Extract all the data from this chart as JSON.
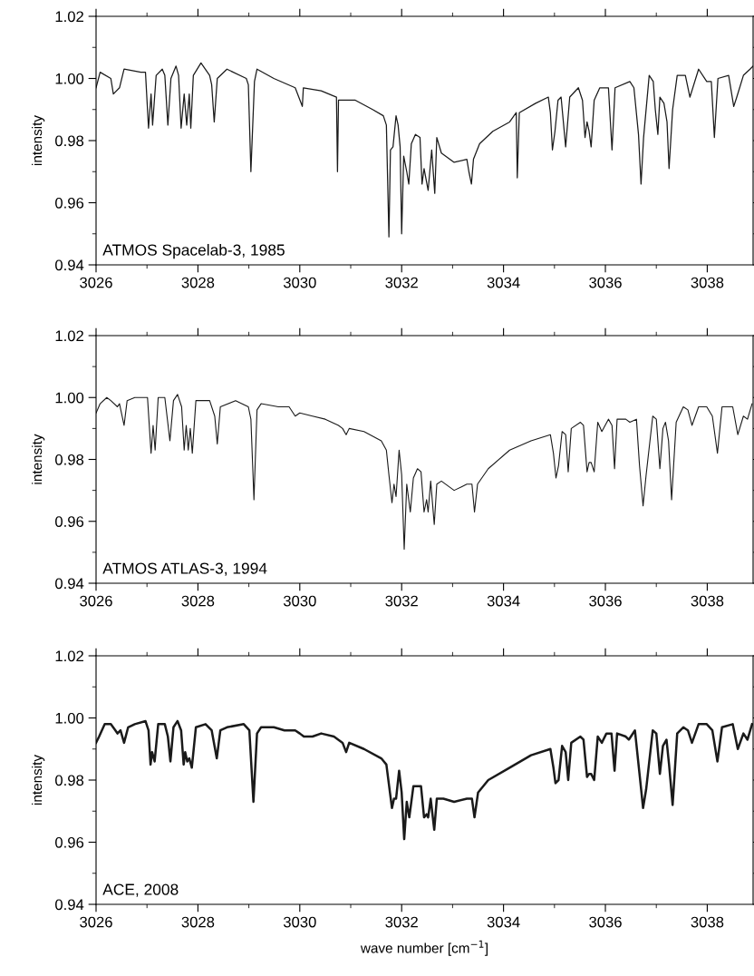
{
  "chart_data": [
    {
      "type": "line",
      "ylabel": "intensity",
      "annotations": [
        "ATMOS Spacelab-3, 1985"
      ],
      "xlim": [
        3026,
        3038.9
      ],
      "xticks": [
        3026,
        3028,
        3030,
        3032,
        3034,
        3036,
        3038
      ],
      "ylim": [
        0.94,
        1.02
      ],
      "yticks": [
        {
          "value": 0.94,
          "label": "0.94"
        },
        {
          "value": 0.96,
          "label": "0.96"
        },
        {
          "value": 0.98,
          "label": "0.98"
        },
        {
          "value": 1.0,
          "label": "1.00"
        },
        {
          "value": 1.02,
          "label": "1.02"
        }
      ],
      "grid": false,
      "series": [
        {
          "color": "#1a1a1a",
          "x": [
            3026.0,
            3026.08,
            3026.29,
            3026.34,
            3026.46,
            3026.55,
            3026.88,
            3026.97,
            3027.03,
            3027.08,
            3027.11,
            3027.18,
            3027.3,
            3027.35,
            3027.41,
            3027.47,
            3027.57,
            3027.62,
            3027.67,
            3027.73,
            3027.78,
            3027.83,
            3027.86,
            3027.91,
            3028.06,
            3028.23,
            3028.27,
            3028.32,
            3028.38,
            3028.57,
            3028.95,
            3028.99,
            3029.04,
            3029.11,
            3029.16,
            3029.49,
            3029.91,
            3030.05,
            3030.07,
            3030.42,
            3030.72,
            3030.74,
            3030.76,
            3031.09,
            3031.43,
            3031.64,
            3031.7,
            3031.75,
            3031.78,
            3031.83,
            3031.89,
            3031.93,
            3031.97,
            3032.0,
            3032.04,
            3032.1,
            3032.14,
            3032.19,
            3032.27,
            3032.36,
            3032.4,
            3032.44,
            3032.52,
            3032.59,
            3032.65,
            3032.69,
            3032.78,
            3033.03,
            3033.28,
            3033.32,
            3033.37,
            3033.41,
            3033.53,
            3033.79,
            3034.12,
            3034.25,
            3034.27,
            3034.31,
            3034.63,
            3034.88,
            3034.92,
            3034.96,
            3035.01,
            3035.07,
            3035.13,
            3035.22,
            3035.3,
            3035.47,
            3035.55,
            3035.6,
            3035.64,
            3035.68,
            3035.72,
            3035.78,
            3035.89,
            3036.06,
            3036.13,
            3036.19,
            3036.48,
            3036.56,
            3036.65,
            3036.7,
            3036.75,
            3036.86,
            3036.94,
            3036.98,
            3037.03,
            3037.07,
            3037.15,
            3037.21,
            3037.25,
            3037.32,
            3037.41,
            3037.57,
            3037.66,
            3037.83,
            3037.99,
            3038.08,
            3038.14,
            3038.21,
            3038.42,
            3038.52,
            3038.58,
            3038.71,
            3038.84,
            3038.9
          ],
          "values": [
            0.997,
            1.002,
            1.0,
            0.995,
            0.997,
            1.003,
            1.002,
            1.002,
            0.984,
            0.995,
            0.985,
            1.001,
            1.003,
            1.001,
            0.985,
            1.0,
            1.004,
            1.001,
            0.984,
            0.995,
            0.985,
            0.995,
            0.984,
            1.001,
            1.005,
            1.001,
            0.998,
            0.986,
            1.0,
            1.003,
            1.0,
            0.998,
            0.97,
            0.999,
            1.003,
            1.0,
            0.997,
            0.991,
            0.997,
            0.996,
            0.994,
            0.97,
            0.993,
            0.993,
            0.99,
            0.988,
            0.985,
            0.949,
            0.977,
            0.978,
            0.988,
            0.985,
            0.978,
            0.95,
            0.975,
            0.97,
            0.966,
            0.979,
            0.982,
            0.981,
            0.966,
            0.971,
            0.964,
            0.977,
            0.963,
            0.981,
            0.976,
            0.973,
            0.974,
            0.97,
            0.966,
            0.974,
            0.979,
            0.983,
            0.986,
            0.989,
            0.968,
            0.989,
            0.992,
            0.994,
            0.989,
            0.977,
            0.983,
            0.993,
            0.994,
            0.978,
            0.994,
            0.997,
            0.993,
            0.981,
            0.986,
            0.983,
            0.978,
            0.993,
            0.997,
            0.997,
            0.977,
            0.997,
            0.999,
            0.997,
            0.982,
            0.966,
            0.981,
            1.001,
            0.999,
            0.99,
            0.982,
            0.994,
            0.992,
            0.986,
            0.971,
            0.99,
            1.001,
            1.001,
            0.994,
            1.003,
            0.999,
            0.999,
            0.981,
            1.0,
            1.001,
            0.991,
            0.994,
            1.001,
            1.003,
            1.004
          ]
        }
      ]
    },
    {
      "type": "line",
      "ylabel": "intensity",
      "annotations": [
        "ATMOS ATLAS-3, 1994"
      ],
      "xlim": [
        3026,
        3038.9
      ],
      "xticks": [
        3026,
        3028,
        3030,
        3032,
        3034,
        3036,
        3038
      ],
      "ylim": [
        0.94,
        1.02
      ],
      "yticks": [
        {
          "value": 0.94,
          "label": "0.94"
        },
        {
          "value": 0.96,
          "label": "0.96"
        },
        {
          "value": 0.98,
          "label": "0.98"
        },
        {
          "value": 1.0,
          "label": "1.00"
        },
        {
          "value": 1.02,
          "label": "1.02"
        }
      ],
      "grid": false,
      "series": [
        {
          "color": "#1a1a1a",
          "x": [
            3026.0,
            3026.08,
            3026.21,
            3026.29,
            3026.42,
            3026.46,
            3026.55,
            3026.61,
            3026.76,
            3027.01,
            3027.08,
            3027.12,
            3027.16,
            3027.22,
            3027.35,
            3027.45,
            3027.52,
            3027.6,
            3027.68,
            3027.73,
            3027.77,
            3027.81,
            3027.85,
            3027.89,
            3027.96,
            3028.23,
            3028.33,
            3028.38,
            3028.44,
            3028.74,
            3028.99,
            3029.04,
            3029.1,
            3029.16,
            3029.24,
            3029.58,
            3029.79,
            3029.91,
            3030.0,
            3030.25,
            3030.5,
            3030.76,
            3030.84,
            3030.91,
            3030.97,
            3031.26,
            3031.6,
            3031.7,
            3031.75,
            3031.81,
            3031.85,
            3031.89,
            3031.95,
            3032.0,
            3032.05,
            3032.1,
            3032.17,
            3032.23,
            3032.31,
            3032.38,
            3032.44,
            3032.49,
            3032.52,
            3032.57,
            3032.64,
            3032.69,
            3032.78,
            3033.03,
            3033.28,
            3033.38,
            3033.43,
            3033.49,
            3033.7,
            3034.12,
            3034.54,
            3034.92,
            3034.98,
            3035.03,
            3035.08,
            3035.15,
            3035.22,
            3035.27,
            3035.33,
            3035.51,
            3035.57,
            3035.64,
            3035.68,
            3035.72,
            3035.78,
            3035.85,
            3035.93,
            3036.06,
            3036.13,
            3036.18,
            3036.23,
            3036.4,
            3036.48,
            3036.61,
            3036.67,
            3036.74,
            3036.8,
            3036.93,
            3037.0,
            3037.07,
            3037.13,
            3037.18,
            3037.24,
            3037.3,
            3037.39,
            3037.53,
            3037.62,
            3037.7,
            3037.83,
            3037.99,
            3038.1,
            3038.2,
            3038.29,
            3038.5,
            3038.6,
            3038.71,
            3038.79,
            3038.88
          ],
          "values": [
            0.995,
            0.998,
            1.0,
            0.999,
            0.997,
            0.998,
            0.991,
            0.999,
            1.0,
            1.0,
            0.982,
            0.991,
            0.983,
            1.0,
            1.0,
            0.986,
            0.999,
            1.001,
            0.997,
            0.983,
            0.991,
            0.983,
            0.99,
            0.982,
            0.999,
            0.999,
            0.994,
            0.985,
            0.997,
            0.999,
            0.997,
            0.993,
            0.967,
            0.996,
            0.998,
            0.997,
            0.997,
            0.994,
            0.995,
            0.994,
            0.993,
            0.991,
            0.99,
            0.988,
            0.99,
            0.989,
            0.986,
            0.983,
            0.975,
            0.966,
            0.972,
            0.968,
            0.983,
            0.975,
            0.951,
            0.972,
            0.963,
            0.974,
            0.977,
            0.976,
            0.963,
            0.967,
            0.963,
            0.973,
            0.959,
            0.972,
            0.973,
            0.97,
            0.972,
            0.972,
            0.963,
            0.972,
            0.977,
            0.983,
            0.986,
            0.988,
            0.982,
            0.974,
            0.978,
            0.989,
            0.988,
            0.976,
            0.99,
            0.992,
            0.991,
            0.976,
            0.979,
            0.979,
            0.976,
            0.992,
            0.989,
            0.993,
            0.991,
            0.977,
            0.993,
            0.993,
            0.992,
            0.993,
            0.978,
            0.965,
            0.975,
            0.994,
            0.993,
            0.977,
            0.99,
            0.992,
            0.986,
            0.967,
            0.992,
            0.997,
            0.996,
            0.991,
            0.997,
            0.997,
            0.994,
            0.982,
            0.997,
            0.997,
            0.988,
            0.994,
            0.993,
            0.998
          ]
        }
      ]
    },
    {
      "type": "line",
      "xlabel": "wave number [cm$^{−1}$]",
      "ylabel": "intensity",
      "annotations": [
        "ACE, 2008"
      ],
      "xlim": [
        3026,
        3038.9
      ],
      "xticks": [
        3026,
        3028,
        3030,
        3032,
        3034,
        3036,
        3038
      ],
      "ylim": [
        0.94,
        1.02
      ],
      "yticks": [
        {
          "value": 0.94,
          "label": "0.94"
        },
        {
          "value": 0.96,
          "label": "0.96"
        },
        {
          "value": 0.98,
          "label": "0.98"
        },
        {
          "value": 1.0,
          "label": "1.00"
        },
        {
          "value": 1.02,
          "label": "1.02"
        }
      ],
      "grid": false,
      "series": [
        {
          "color": "#1a1a1a",
          "x": [
            3026.0,
            3026.06,
            3026.17,
            3026.29,
            3026.38,
            3026.42,
            3026.48,
            3026.55,
            3026.63,
            3026.76,
            3026.97,
            3027.03,
            3027.07,
            3027.1,
            3027.15,
            3027.22,
            3027.35,
            3027.41,
            3027.46,
            3027.52,
            3027.6,
            3027.67,
            3027.72,
            3027.75,
            3027.79,
            3027.83,
            3027.88,
            3027.96,
            3028.15,
            3028.27,
            3028.37,
            3028.44,
            3028.57,
            3028.9,
            3029.01,
            3029.09,
            3029.16,
            3029.24,
            3029.49,
            3029.7,
            3029.91,
            3030.0,
            3030.08,
            3030.17,
            3030.25,
            3030.42,
            3030.67,
            3030.84,
            3030.91,
            3030.97,
            3031.26,
            3031.6,
            3031.7,
            3031.77,
            3031.81,
            3031.85,
            3031.89,
            3031.95,
            3032.0,
            3032.05,
            3032.1,
            3032.15,
            3032.23,
            3032.31,
            3032.38,
            3032.44,
            3032.49,
            3032.52,
            3032.57,
            3032.64,
            3032.69,
            3032.82,
            3033.03,
            3033.28,
            3033.38,
            3033.43,
            3033.5,
            3033.7,
            3034.12,
            3034.54,
            3034.92,
            3034.98,
            3035.02,
            3035.08,
            3035.15,
            3035.22,
            3035.27,
            3035.33,
            3035.51,
            3035.57,
            3035.64,
            3035.68,
            3035.72,
            3035.78,
            3035.85,
            3035.93,
            3036.02,
            3036.12,
            3036.18,
            3036.23,
            3036.4,
            3036.46,
            3036.58,
            3036.67,
            3036.74,
            3036.8,
            3036.93,
            3037.0,
            3037.07,
            3037.13,
            3037.2,
            3037.25,
            3037.32,
            3037.41,
            3037.53,
            3037.62,
            3037.7,
            3037.83,
            3037.99,
            3038.1,
            3038.2,
            3038.29,
            3038.5,
            3038.6,
            3038.71,
            3038.79,
            3038.88
          ],
          "values": [
            0.992,
            0.994,
            0.998,
            0.998,
            0.996,
            0.995,
            0.996,
            0.992,
            0.997,
            0.998,
            0.999,
            0.996,
            0.985,
            0.989,
            0.986,
            0.998,
            0.998,
            0.994,
            0.986,
            0.997,
            0.999,
            0.996,
            0.985,
            0.989,
            0.986,
            0.987,
            0.984,
            0.997,
            0.998,
            0.996,
            0.987,
            0.996,
            0.997,
            0.998,
            0.996,
            0.973,
            0.995,
            0.997,
            0.997,
            0.996,
            0.996,
            0.995,
            0.994,
            0.994,
            0.994,
            0.995,
            0.994,
            0.992,
            0.989,
            0.992,
            0.99,
            0.987,
            0.985,
            0.976,
            0.971,
            0.974,
            0.974,
            0.983,
            0.976,
            0.961,
            0.973,
            0.968,
            0.978,
            0.978,
            0.978,
            0.968,
            0.969,
            0.968,
            0.974,
            0.964,
            0.974,
            0.974,
            0.973,
            0.974,
            0.974,
            0.968,
            0.976,
            0.98,
            0.984,
            0.988,
            0.99,
            0.984,
            0.979,
            0.98,
            0.991,
            0.989,
            0.98,
            0.992,
            0.994,
            0.993,
            0.981,
            0.982,
            0.982,
            0.98,
            0.994,
            0.992,
            0.995,
            0.995,
            0.983,
            0.995,
            0.994,
            0.993,
            0.996,
            0.982,
            0.971,
            0.977,
            0.996,
            0.995,
            0.982,
            0.991,
            0.993,
            0.985,
            0.972,
            0.995,
            0.997,
            0.996,
            0.992,
            0.998,
            0.998,
            0.996,
            0.986,
            0.997,
            0.998,
            0.99,
            0.995,
            0.993,
            0.998
          ]
        }
      ]
    }
  ]
}
